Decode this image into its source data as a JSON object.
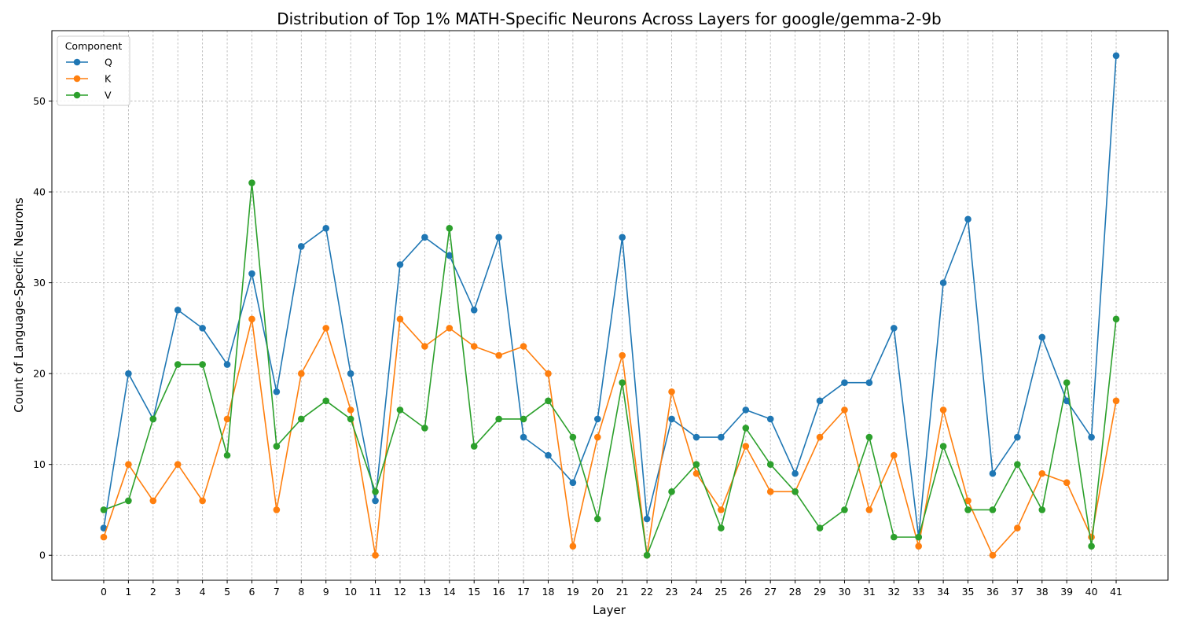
{
  "chart_data": {
    "type": "line",
    "title": "Distribution of Top 1% MATH-Specific Neurons Across Layers for google/gemma-2-9b",
    "xlabel": "Layer",
    "ylabel": "Count of Language-Specific Neurons",
    "x": [
      0,
      1,
      2,
      3,
      4,
      5,
      6,
      7,
      8,
      9,
      10,
      11,
      12,
      13,
      14,
      15,
      16,
      17,
      18,
      19,
      20,
      21,
      22,
      23,
      24,
      25,
      26,
      27,
      28,
      29,
      30,
      31,
      32,
      33,
      34,
      35,
      36,
      37,
      38,
      39,
      40,
      41
    ],
    "xlim": [
      -2.1,
      43.1
    ],
    "ylim": [
      -2.75,
      57.75
    ],
    "yticks": [
      0,
      10,
      20,
      30,
      40,
      50
    ],
    "grid": true,
    "legend": {
      "title": "Component",
      "position": "top-left"
    },
    "series": [
      {
        "name": "Q",
        "color": "#1f77b4",
        "values": [
          3,
          20,
          15,
          27,
          25,
          21,
          31,
          18,
          34,
          36,
          20,
          6,
          32,
          35,
          33,
          27,
          35,
          13,
          11,
          8,
          15,
          35,
          4,
          15,
          13,
          13,
          16,
          15,
          9,
          17,
          19,
          19,
          25,
          2,
          30,
          37,
          9,
          13,
          24,
          17,
          13,
          55
        ]
      },
      {
        "name": "K",
        "color": "#ff7f0e",
        "values": [
          2,
          10,
          6,
          10,
          6,
          15,
          26,
          5,
          20,
          25,
          16,
          0,
          26,
          23,
          25,
          23,
          22,
          23,
          20,
          1,
          13,
          22,
          0,
          18,
          9,
          5,
          12,
          7,
          7,
          13,
          16,
          5,
          11,
          1,
          16,
          6,
          0,
          3,
          9,
          8,
          2,
          17
        ]
      },
      {
        "name": "V",
        "color": "#2ca02c",
        "values": [
          5,
          6,
          15,
          21,
          21,
          11,
          41,
          12,
          15,
          17,
          15,
          7,
          16,
          14,
          36,
          12,
          15,
          15,
          17,
          13,
          4,
          19,
          0,
          7,
          10,
          3,
          14,
          10,
          7,
          3,
          5,
          13,
          2,
          2,
          12,
          5,
          5,
          10,
          5,
          19,
          1,
          26
        ]
      }
    ]
  }
}
